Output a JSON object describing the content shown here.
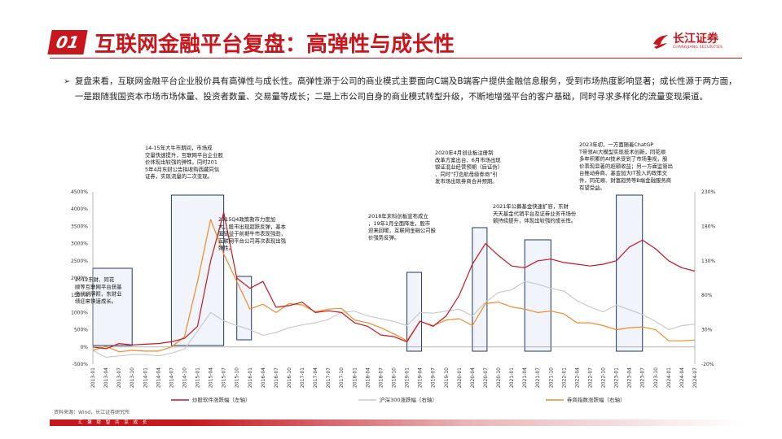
{
  "header": {
    "section_number": "01",
    "title": "互联网金融平台复盘：高弹性与成长性",
    "logo_cn": "长江证券",
    "logo_en": "CHANGJIANG SECURITIES"
  },
  "summary": "复盘来看，互联网金融平台企业股价具有高弹性与成长性。高弹性源于公司的商业模式主要面向C端及B端客户提供金融信息服务，受到市场热度影响显著；成长性源于两方面，一是跟随我国资本市场市场体量、投资者数量、交易量等成长；二是上市公司自身的商业模式转型升级，不断地增强平台的客户基础，同时寻求多样化的流量变现渠道。",
  "footer": {
    "source": "资料来源：Wind，长江证券研究所",
    "slogan": "汇 聚 财 智    共 享 成 长"
  },
  "colors": {
    "brand": "#c8161d",
    "stock_line": "#c8161d",
    "hs300_line": "#c9c9c9",
    "broker_line": "#f08a2a",
    "highlight_box_fill": "#e6ebf5",
    "highlight_box_stroke": "#1f3864"
  },
  "chart_data": {
    "type": "line",
    "x_ticks": [
      "2013-01",
      "2013-04",
      "2013-07",
      "2013-10",
      "2014-01",
      "2014-04",
      "2014-07",
      "2014-10",
      "2015-01",
      "2015-04",
      "2015-07",
      "2015-10",
      "2016-01",
      "2016-04",
      "2016-07",
      "2016-10",
      "2017-01",
      "2017-04",
      "2017-07",
      "2017-10",
      "2018-01",
      "2018-04",
      "2018-07",
      "2018-10",
      "2019-01",
      "2019-04",
      "2019-07",
      "2019-10",
      "2020-01",
      "2020-04",
      "2020-07",
      "2020-10",
      "2021-01",
      "2021-04",
      "2021-07",
      "2021-10",
      "2022-01",
      "2022-04",
      "2022-07",
      "2022-10",
      "2023-01",
      "2023-04",
      "2023-07",
      "2023-10",
      "2024-01",
      "2024-04",
      "2024-07"
    ],
    "y_left": {
      "min": -500,
      "max": 4500,
      "ticks": [
        "-500%",
        "0%",
        "500%",
        "1000%",
        "1500%",
        "2000%",
        "2500%",
        "3000%",
        "3500%",
        "4000%",
        "4500%"
      ]
    },
    "y_right": {
      "min": -20,
      "max": 230,
      "ticks": [
        "-20%",
        "30%",
        "80%",
        "130%",
        "180%",
        "230%"
      ]
    },
    "series": [
      {
        "name": "炒股软件涨跌幅（左轴）",
        "axis": "left",
        "color": "#c8161d",
        "values": [
          0,
          -50,
          100,
          60,
          80,
          100,
          150,
          250,
          600,
          2500,
          3900,
          2000,
          1700,
          1900,
          1150,
          1200,
          1300,
          1000,
          1050,
          1000,
          700,
          600,
          350,
          300,
          150,
          750,
          600,
          900,
          1500,
          2400,
          3000,
          2650,
          2350,
          2300,
          2500,
          2550,
          2450,
          2400,
          2350,
          2400,
          2500,
          2900,
          3100,
          2850,
          2500,
          2300,
          2200
        ]
      },
      {
        "name": "沪深300涨跌幅（右轴）",
        "axis": "right",
        "color": "#c9c9c9",
        "values": [
          0,
          -10,
          -8,
          -6,
          -6,
          -8,
          -4,
          2,
          28,
          55,
          43,
          36,
          30,
          22,
          26,
          33,
          37,
          40,
          45,
          55,
          57,
          50,
          46,
          42,
          36,
          55,
          54,
          57,
          60,
          50,
          70,
          84,
          88,
          100,
          96,
          90,
          86,
          72,
          63,
          56,
          66,
          59,
          52,
          42,
          30,
          36,
          38
        ]
      },
      {
        "name": "券商指数涨跌幅（右轴）",
        "axis": "right",
        "color": "#f08a2a",
        "values": [
          0,
          6,
          -2,
          0,
          -1,
          -1,
          5,
          20,
          100,
          190,
          140,
          100,
          60,
          67,
          55,
          68,
          66,
          56,
          60,
          61,
          44,
          40,
          33,
          24,
          14,
          42,
          36,
          44,
          46,
          36,
          68,
          70,
          63,
          60,
          55,
          57,
          53,
          40,
          40,
          36,
          30,
          33,
          34,
          30,
          14,
          14,
          15
        ]
      }
    ],
    "annotations": [
      {
        "text": "2012东财、同花顺等互联网平台获基金代销牌照，东财业绩迎来快速成长。",
        "period": [
          "2013-01",
          "2013-10"
        ]
      },
      {
        "text": "14-15年大牛市期间，市场成交量快速提升，互联网平台企业股价体现出较强的弹性。同时2015年4月东财公告拟收购西藏同信证券，实现流量的二次变现。",
        "period": [
          "2014-07",
          "2015-07"
        ]
      },
      {
        "text": "2015Q4政策救市力度加大，股市出现超跌反弹，基本面受益于前期牛市表现强劲，互联网平台公司再次表现出强弹性。",
        "period": [
          "2015-10",
          "2015-12"
        ]
      },
      {
        "text": "2018年末科创板宣布成立，19年1月全面降准，股市迎来回暖，互联网金融公司股价强势反弹。",
        "period": [
          "2019-01",
          "2019-04"
        ]
      },
      {
        "text": "2020年4月创业板注册制改革方案出台、6月市场出现银证混业经营预期（后证伪）、同时“打造航母级券商”引发市场出现券商合并预期。",
        "period": [
          "2020-04",
          "2020-07"
        ]
      },
      {
        "text": "2021年公募基金快速扩容，东财天天基金代销平台及证券业务市场份额持续提升，体现出较强的成长性。",
        "period": [
          "2021-04",
          "2021-10"
        ]
      },
      {
        "text": "2023年初，一方面随着ChatGPT带领AI大模型实现技术创新，同花顺多年积累的AI技术受到了市场重视，股价表现显著的超额收益；另一方面监管出台推动券商、基金加大IT投入的政策文件，同花顺、财富趋势等B端金融服务商有望受益。",
        "period": [
          "2023-01",
          "2023-07"
        ]
      }
    ]
  }
}
